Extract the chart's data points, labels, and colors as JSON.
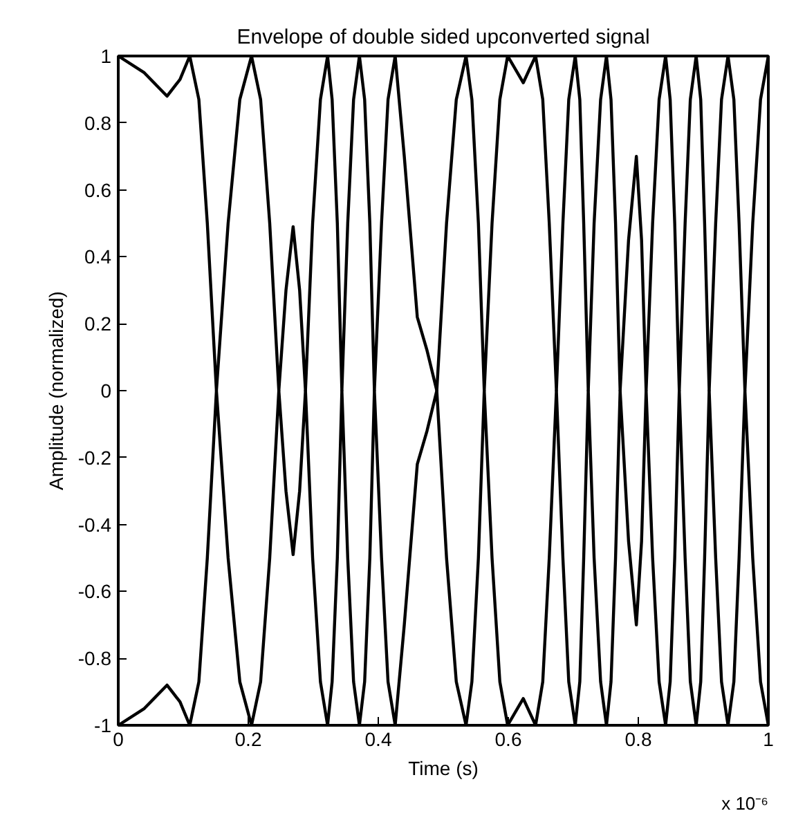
{
  "chart_data": {
    "type": "line",
    "title": "Envelope of double sided upconverted signal",
    "xlabel": "Time (s)",
    "ylabel": "Amplitude (normalized)",
    "annotations": [
      "x 10⁻⁶"
    ],
    "xlim": [
      0,
      1
    ],
    "ylim": [
      -1,
      1
    ],
    "xticks": [
      0,
      0.2,
      0.4,
      0.6,
      0.8,
      1
    ],
    "yticks": [
      -1,
      -0.8,
      -0.6,
      -0.4,
      -0.2,
      0,
      0.2,
      0.4,
      0.6,
      0.8,
      1
    ],
    "grid": false,
    "marker": "none",
    "line_style": "solid",
    "x": [
      0,
      0.04,
      0.075,
      0.095,
      0.11,
      0.124,
      0.137,
      0.151,
      0.169,
      0.187,
      0.205,
      0.219,
      0.233,
      0.247,
      0.258,
      0.269,
      0.279,
      0.288,
      0.299,
      0.311,
      0.322,
      0.329,
      0.337,
      0.344,
      0.353,
      0.362,
      0.371,
      0.379,
      0.387,
      0.394,
      0.405,
      0.415,
      0.426,
      0.44,
      0.46,
      0.475,
      0.49,
      0.505,
      0.52,
      0.535,
      0.544,
      0.554,
      0.563,
      0.575,
      0.587,
      0.599,
      0.623,
      0.642,
      0.653,
      0.663,
      0.674,
      0.684,
      0.693,
      0.703,
      0.71,
      0.716,
      0.723,
      0.732,
      0.742,
      0.751,
      0.758,
      0.765,
      0.772,
      0.785,
      0.797,
      0.805,
      0.812,
      0.822,
      0.832,
      0.842,
      0.849,
      0.856,
      0.863,
      0.872,
      0.88,
      0.889,
      0.896,
      0.902,
      0.909,
      0.919,
      0.928,
      0.938,
      0.947,
      0.955,
      0.964,
      0.976,
      0.988,
      1.0
    ],
    "series": [
      {
        "color": "#000000",
        "values": [
          1,
          0.95,
          0.88,
          0.93,
          1,
          0.87,
          0.5,
          0,
          0.5,
          0.87,
          1,
          0.87,
          0.5,
          0,
          0.3,
          0.49,
          0.3,
          0,
          0.5,
          0.87,
          1,
          0.87,
          0.5,
          0,
          0.5,
          0.87,
          1,
          0.87,
          0.5,
          0,
          0.5,
          0.87,
          1,
          0.7,
          0.22,
          0.12,
          0,
          0.5,
          0.87,
          1,
          0.87,
          0.5,
          0,
          0.5,
          0.87,
          1,
          0.92,
          1,
          0.87,
          0.5,
          0,
          0.5,
          0.87,
          1,
          0.87,
          0.5,
          0,
          0.5,
          0.87,
          1,
          0.87,
          0.5,
          0,
          0.45,
          0.7,
          0.45,
          0,
          0.5,
          0.87,
          1,
          0.87,
          0.5,
          0,
          0.5,
          0.87,
          1,
          0.87,
          0.5,
          0,
          0.5,
          0.87,
          1,
          0.87,
          0.5,
          0,
          0.5,
          0.87,
          1
        ]
      },
      {
        "color": "#000000",
        "values": [
          -1,
          -0.95,
          -0.88,
          -0.93,
          -1,
          -0.87,
          -0.5,
          0,
          -0.5,
          -0.87,
          -1,
          -0.87,
          -0.5,
          0,
          -0.3,
          -0.49,
          -0.3,
          0,
          -0.5,
          -0.87,
          -1,
          -0.87,
          -0.5,
          0,
          -0.5,
          -0.87,
          -1,
          -0.87,
          -0.5,
          0,
          -0.5,
          -0.87,
          -1,
          -0.7,
          -0.22,
          -0.12,
          0,
          -0.5,
          -0.87,
          -1,
          -0.87,
          -0.5,
          0,
          -0.5,
          -0.87,
          -1,
          -0.92,
          -1,
          -0.87,
          -0.5,
          0,
          -0.5,
          -0.87,
          -1,
          -0.87,
          -0.5,
          0,
          -0.5,
          -0.87,
          -1,
          -0.87,
          -0.5,
          0,
          -0.45,
          -0.7,
          -0.45,
          0,
          -0.5,
          -0.87,
          -1,
          -0.87,
          -0.5,
          0,
          -0.5,
          -0.87,
          -1,
          -0.87,
          -0.5,
          0,
          -0.5,
          -0.87,
          -1,
          -0.87,
          -0.5,
          0,
          -0.5,
          -0.87,
          -1
        ]
      }
    ]
  }
}
